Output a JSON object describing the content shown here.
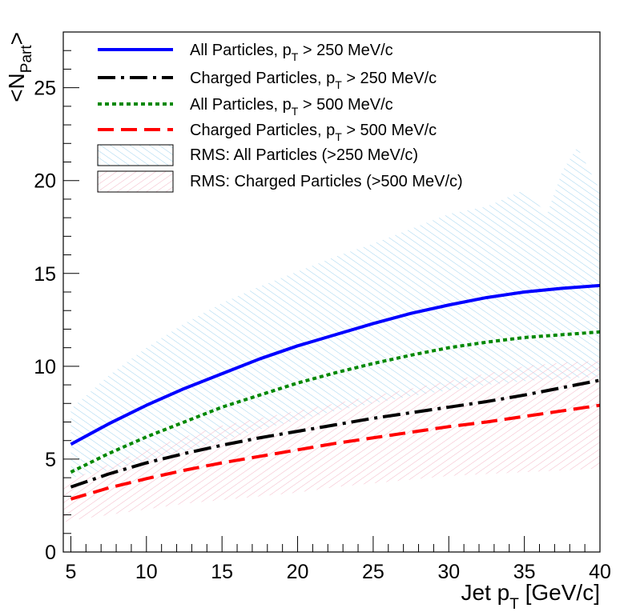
{
  "chart_data": {
    "type": "line",
    "title": "",
    "xlabel": {
      "main": "Jet p",
      "sub": "T",
      "tail": " [GeV/c]"
    },
    "ylabel": {
      "pre": "<N",
      "sub": "Part",
      "post": ">"
    },
    "xlim": [
      4.5,
      40
    ],
    "ylim": [
      0,
      28
    ],
    "x_major_ticks": [
      5,
      10,
      15,
      20,
      25,
      30,
      35,
      40
    ],
    "y_major_ticks": [
      0,
      5,
      10,
      15,
      20,
      25
    ],
    "x_tick_labels": [
      "5",
      "10",
      "15",
      "20",
      "25",
      "30",
      "35",
      "40"
    ],
    "y_tick_labels": [
      "0",
      "5",
      "10",
      "15",
      "20",
      "25"
    ],
    "x": [
      5,
      7.5,
      10,
      12.5,
      15,
      17.5,
      20,
      22.5,
      25,
      27.5,
      30,
      32.5,
      35,
      37.5,
      40
    ],
    "series": [
      {
        "name": "All Particles, p_T > 250 MeV/c",
        "style": "solid",
        "color": "#0000ff",
        "values": [
          5.8,
          6.9,
          7.9,
          8.8,
          9.6,
          10.4,
          11.1,
          11.7,
          12.3,
          12.85,
          13.3,
          13.7,
          14.0,
          14.2,
          14.35
        ],
        "legend": {
          "pre": "All Particles, p",
          "sub": "T",
          "post": " > 250 MeV/c"
        }
      },
      {
        "name": "Charged Particles, p_T > 250 MeV/c",
        "style": "dashdot",
        "color": "#000000",
        "values": [
          3.5,
          4.2,
          4.8,
          5.3,
          5.75,
          6.15,
          6.5,
          6.85,
          7.2,
          7.5,
          7.8,
          8.1,
          8.45,
          8.85,
          9.25
        ],
        "legend": {
          "pre": "Charged Particles, p",
          "sub": "T",
          "post": " > 250 MeV/c"
        }
      },
      {
        "name": "All Particles, p_T > 500 MeV/c",
        "style": "dotted",
        "color": "#008800",
        "values": [
          4.3,
          5.3,
          6.2,
          7.0,
          7.8,
          8.45,
          9.1,
          9.65,
          10.15,
          10.6,
          11.0,
          11.3,
          11.55,
          11.7,
          11.85
        ],
        "legend": {
          "pre": "All Particles, p",
          "sub": "T",
          "post": " > 500 MeV/c"
        }
      },
      {
        "name": "Charged Particles, p_T > 500 MeV/c",
        "style": "dashed",
        "color": "#ff0000",
        "values": [
          2.85,
          3.45,
          3.95,
          4.4,
          4.8,
          5.15,
          5.5,
          5.85,
          6.15,
          6.45,
          6.75,
          7.0,
          7.3,
          7.6,
          7.9
        ],
        "legend": {
          "pre": "Charged Particles, p",
          "sub": "T",
          "post": " > 500 MeV/c"
        }
      }
    ],
    "bands": [
      {
        "name": "RMS: All Particles (>250 MeV/c)",
        "color": "#9fd3ef",
        "hatch": "forward",
        "x": [
          5,
          7.5,
          10,
          12.5,
          15,
          17.5,
          20,
          22.5,
          25,
          27.5,
          30,
          32.5,
          35,
          36.5,
          37.5,
          38.5,
          40
        ],
        "lower": [
          4.0,
          4.4,
          4.9,
          5.4,
          6.0,
          6.6,
          7.1,
          7.6,
          8.0,
          8.4,
          8.7,
          9.0,
          9.2,
          9.3,
          9.3,
          9.4,
          9.4
        ],
        "upper": [
          7.7,
          9.5,
          11.0,
          12.3,
          13.4,
          14.3,
          15.1,
          15.9,
          16.6,
          17.4,
          18.2,
          18.6,
          19.5,
          18.2,
          20.5,
          21.8,
          19.5
        ],
        "legend": "RMS: All Particles (>250 MeV/c)"
      },
      {
        "name": "RMS: Charged Particles (>500 MeV/c)",
        "color": "#f4b6c6",
        "hatch": "backward",
        "x": [
          4.5,
          5,
          7.5,
          10,
          12.5,
          15,
          17.5,
          20,
          22.5,
          25,
          27.5,
          30,
          32.5,
          35,
          37.5,
          40
        ],
        "lower": [
          1.6,
          1.7,
          2.0,
          2.3,
          2.6,
          2.8,
          3.0,
          3.2,
          3.5,
          3.7,
          3.9,
          4.1,
          4.2,
          4.3,
          4.4,
          4.5
        ],
        "upper": [
          3.6,
          3.9,
          4.7,
          5.5,
          6.2,
          6.8,
          7.2,
          7.6,
          8.0,
          8.4,
          8.8,
          9.2,
          9.6,
          10.0,
          10.2,
          10.3
        ],
        "legend": "RMS: Charged Particles (>500 MeV/c)"
      }
    ],
    "legend_position": "top-left",
    "grid": false
  }
}
